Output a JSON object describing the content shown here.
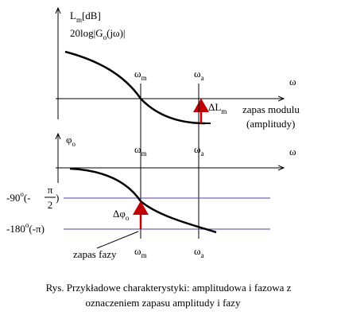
{
  "diagram": {
    "top": {
      "y_label": {
        "text": "L",
        "sub": "m",
        "unit": "[dB]"
      },
      "y_label2": {
        "text": "20log|G",
        "sub": "o",
        "rest": "(jω)|"
      },
      "omega_m": {
        "text": "ω",
        "sub": "m"
      },
      "omega_a": {
        "text": "ω",
        "sub": "a"
      },
      "omega": "ω",
      "delta": {
        "text": "ΔL",
        "sub": "m"
      },
      "margin_line1": "zapas modulu",
      "margin_line2": "(amplitudy)"
    },
    "bottom": {
      "y_label": {
        "text": "φ",
        "sub": "o"
      },
      "omega_m": {
        "text": "ω",
        "sub": "m"
      },
      "omega_a": {
        "text": "ω",
        "sub": "a"
      },
      "omega": "ω",
      "level90": {
        "text": "-90",
        "sup": "o",
        "open": "(-",
        "num": "π",
        "den": "2",
        "close": ")"
      },
      "level180": {
        "text": "-180",
        "sup": "o",
        "rest": "(-π)"
      },
      "delta": {
        "text": "Δφ",
        "sub": "o"
      },
      "margin": "zapas fazy",
      "omega_m2": {
        "text": "ω",
        "sub": "m"
      },
      "omega_a2": {
        "text": "ω",
        "sub": "a"
      }
    },
    "caption": {
      "line1": "Rys. Przykładowe charakterystyki: amplitudowa i fazowa z",
      "line2": "oznaczeniem zapasu amplitudy i fazy"
    }
  }
}
